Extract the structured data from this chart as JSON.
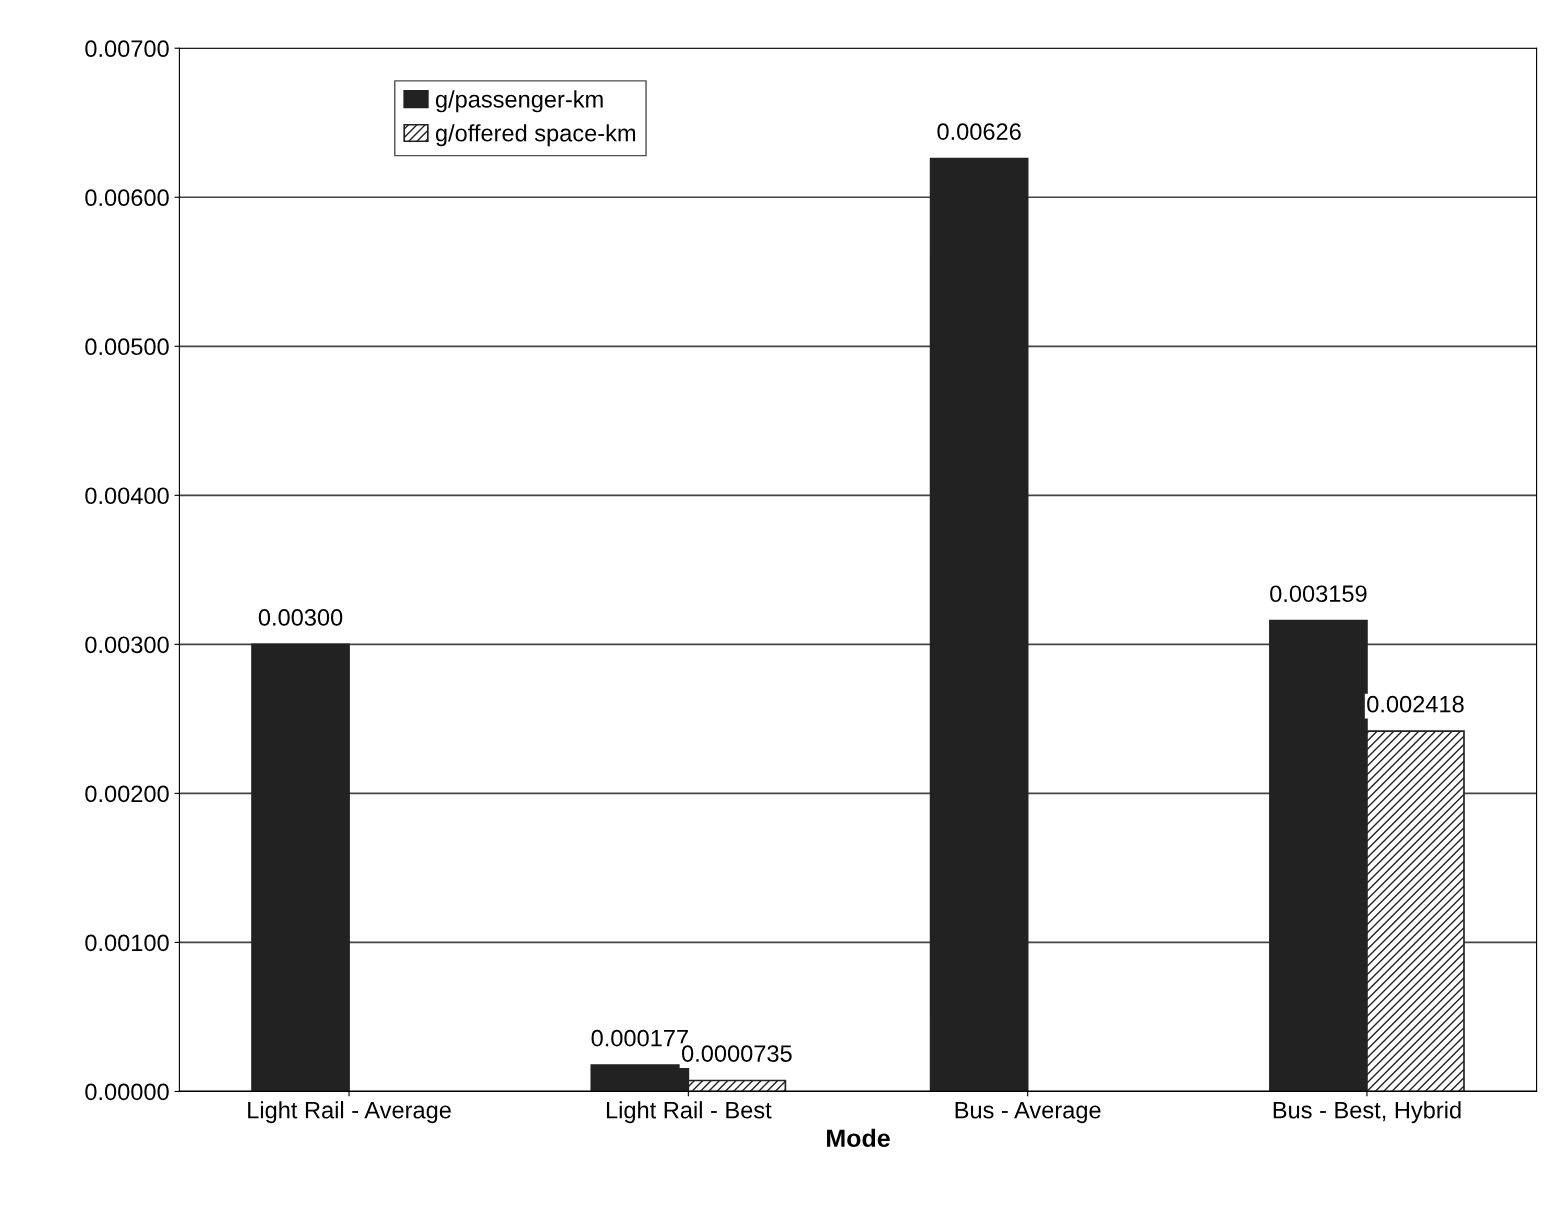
{
  "chart_data": {
    "type": "bar",
    "xlabel": "Mode",
    "categories": [
      "Light Rail - Average",
      "Light Rail - Best",
      "Bus - Average",
      "Bus - Best, Hybrid"
    ],
    "series": [
      {
        "name": "g/passenger-km",
        "color": "#222222",
        "values": [
          0.003,
          0.000177,
          0.00626,
          0.003159
        ],
        "value_labels": [
          "0.00300",
          "0.000177",
          "0.00626",
          "0.003159"
        ]
      },
      {
        "name": "g/offered space-km",
        "color": "#222222",
        "values": [
          null,
          7.35e-05,
          null,
          0.002418
        ],
        "value_labels": [
          null,
          "0.0000735",
          null,
          "0.002418"
        ]
      }
    ],
    "ylim": [
      0,
      0.007
    ],
    "yticks": [
      {
        "value": 0,
        "label": "0.00000"
      },
      {
        "value": 0.001,
        "label": "0.00100"
      },
      {
        "value": 0.002,
        "label": "0.00200"
      },
      {
        "value": 0.003,
        "label": "0.00300"
      },
      {
        "value": 0.004,
        "label": "0.00400"
      },
      {
        "value": 0.005,
        "label": "0.00500"
      },
      {
        "value": 0.006,
        "label": "0.00600"
      },
      {
        "value": 0.007,
        "label": "0.00700"
      }
    ],
    "grid": "y",
    "legend": "top left"
  }
}
